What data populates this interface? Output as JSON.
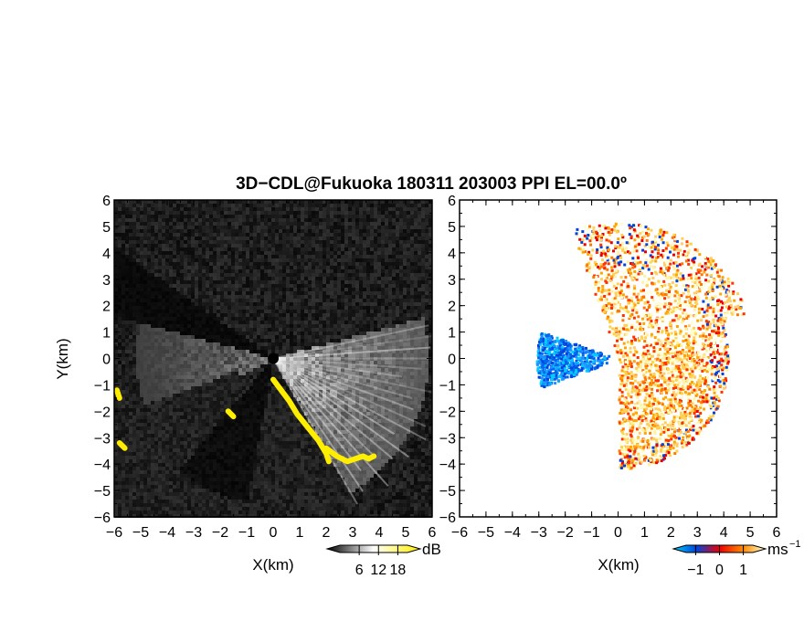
{
  "title": "3D−CDL@Fukuoka 180311 203003 PPI EL=00.0º",
  "chart_data": [
    {
      "type": "heatmap",
      "panel": "left",
      "quantity": "dB",
      "xlabel": "X(km)",
      "ylabel": "Y(km)",
      "xlim": [
        -6,
        6
      ],
      "ylim": [
        -6,
        6
      ],
      "xticks": [
        "−6",
        "−5",
        "−4",
        "−3",
        "−2",
        "−1",
        "0",
        "1",
        "2",
        "3",
        "4",
        "5",
        "6"
      ],
      "yticks": [
        "6",
        "5",
        "4",
        "3",
        "2",
        "1",
        "0",
        "−1",
        "−2",
        "−3",
        "−4",
        "−5",
        "−6"
      ],
      "colorbar": {
        "unit": "dB",
        "ticks": [
          "6",
          "12",
          "18"
        ],
        "range": [
          0,
          21
        ],
        "colors": [
          "#000000",
          "#ffffff",
          "#ffee00"
        ]
      },
      "radar_center": [
        0,
        0
      ],
      "blocked_sector_deg": [
        -60,
        15
      ],
      "high_echo_tracks_km": [
        [
          [
            0.0,
            -0.8
          ],
          [
            0.3,
            -1.2
          ],
          [
            0.6,
            -1.6
          ],
          [
            0.9,
            -2.1
          ],
          [
            1.3,
            -2.6
          ],
          [
            1.7,
            -3.1
          ],
          [
            2.0,
            -3.6
          ],
          [
            2.1,
            -3.9
          ]
        ],
        [
          [
            2.0,
            -3.4
          ],
          [
            2.4,
            -3.7
          ],
          [
            2.8,
            -3.9
          ],
          [
            3.1,
            -3.8
          ],
          [
            3.4,
            -3.7
          ],
          [
            3.6,
            -3.8
          ],
          [
            3.8,
            -3.7
          ]
        ],
        [
          [
            -5.9,
            -1.2
          ],
          [
            -5.8,
            -1.5
          ]
        ],
        [
          [
            -5.8,
            -3.2
          ],
          [
            -5.6,
            -3.4
          ]
        ],
        [
          [
            -1.7,
            -2.0
          ],
          [
            -1.5,
            -2.2
          ]
        ]
      ]
    },
    {
      "type": "heatmap",
      "panel": "right",
      "quantity": "Doppler velocity",
      "xlabel": "X(km)",
      "xlim": [
        -6,
        6
      ],
      "ylim": [
        -6,
        6
      ],
      "xticks": [
        "−6",
        "−5",
        "−4",
        "−3",
        "−2",
        "−1",
        "0",
        "1",
        "2",
        "3",
        "4",
        "5",
        "6"
      ],
      "yticks": [
        "6",
        "5",
        "4",
        "3",
        "2",
        "1",
        "0",
        "−1",
        "−2",
        "−3",
        "−4",
        "−5",
        "−6"
      ],
      "colorbar": {
        "unit": "ms",
        "unit_exponent": "−1",
        "ticks": [
          "−1",
          "0",
          "1"
        ],
        "range": [
          -1.4,
          1.4
        ],
        "colors": [
          "#00ccff",
          "#0044dd",
          "#ee0000",
          "#ff8800",
          "#ffffcc"
        ]
      },
      "positive_sector_deg": [
        -90,
        110
      ],
      "negative_sector_deg": [
        160,
        200
      ]
    }
  ]
}
